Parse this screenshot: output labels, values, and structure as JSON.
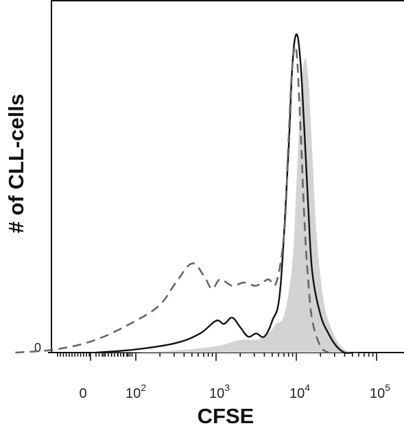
{
  "chart_data": {
    "type": "area",
    "title": "",
    "xlabel": "CFSE",
    "ylabel": "# of CLL-cells",
    "x_scale": "biexponential (log decades)",
    "xlim": [
      -1,
      5
    ],
    "ylim": [
      0,
      100
    ],
    "x_ticks": [
      {
        "base": "0",
        "exp": "",
        "value": 0
      },
      {
        "base": "10",
        "exp": "2",
        "value": 100
      },
      {
        "base": "10",
        "exp": "3",
        "value": 1000
      },
      {
        "base": "10",
        "exp": "4",
        "value": 10000
      },
      {
        "base": "10",
        "exp": "5",
        "value": 100000
      }
    ],
    "y_ticks": [
      {
        "label": "0",
        "value": 0
      }
    ],
    "grid": false,
    "legend": "none",
    "series": [
      {
        "style": "filled-gray",
        "color": "#d3d3d3",
        "x_log": [
          1.6,
          2.4,
          3.0,
          3.3,
          3.5,
          3.65,
          3.75,
          3.85,
          3.95,
          4.0,
          4.05,
          4.1,
          4.15,
          4.2,
          4.25,
          4.3,
          4.35,
          4.4,
          4.5,
          4.6,
          4.7,
          4.8
        ],
        "y": [
          0,
          0.5,
          2,
          4,
          4,
          6,
          9,
          12,
          28,
          52,
          78,
          92,
          86,
          62,
          38,
          24,
          15,
          10,
          4,
          1,
          0,
          0
        ]
      },
      {
        "style": "solid-black",
        "color": "#111111",
        "x_log": [
          1.5,
          2.0,
          2.5,
          2.8,
          3.0,
          3.1,
          3.2,
          3.3,
          3.4,
          3.5,
          3.6,
          3.7,
          3.8,
          3.9,
          3.95,
          4.0,
          4.05,
          4.1,
          4.15,
          4.2,
          4.3,
          4.4,
          4.5,
          4.6,
          4.7
        ],
        "y": [
          0,
          1,
          3,
          6,
          10,
          9,
          11,
          8,
          5,
          6,
          5,
          10,
          20,
          62,
          90,
          100,
          92,
          70,
          45,
          25,
          12,
          6,
          2,
          0,
          0
        ]
      },
      {
        "style": "dashed-gray",
        "color": "#666666",
        "x_log": [
          0.5,
          1.0,
          1.5,
          2.0,
          2.3,
          2.5,
          2.7,
          2.85,
          2.95,
          3.05,
          3.2,
          3.35,
          3.5,
          3.65,
          3.75,
          3.85,
          3.9,
          3.95,
          4.0,
          4.05,
          4.1,
          4.15,
          4.2,
          4.3,
          4.4
        ],
        "y": [
          0,
          1,
          4,
          10,
          15,
          22,
          28,
          24,
          20,
          23,
          21,
          22,
          21,
          23,
          22,
          38,
          65,
          90,
          95,
          72,
          42,
          22,
          10,
          2,
          0
        ]
      }
    ]
  }
}
